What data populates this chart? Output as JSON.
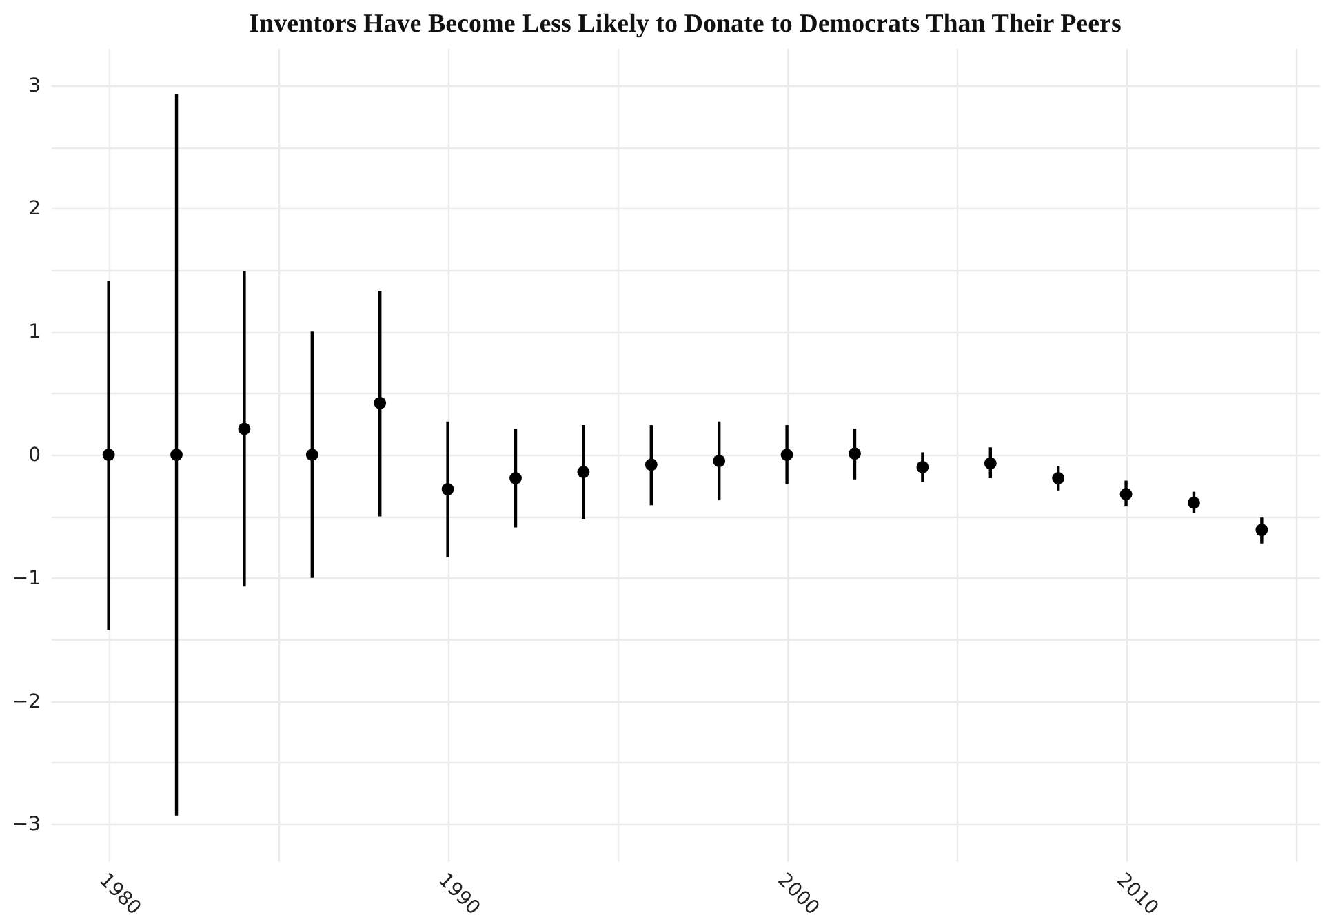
{
  "chart_data": {
    "type": "scatter",
    "title": "Inventors Have Become Less Likely to Donate to Democrats Than Their Peers",
    "x": [
      1980,
      1982,
      1984,
      1986,
      1988,
      1990,
      1992,
      1994,
      1996,
      1998,
      2000,
      2002,
      2004,
      2006,
      2008,
      2010,
      2012,
      2014
    ],
    "series": [
      {
        "color": "#000000",
        "values": [
          0,
          0,
          0.21,
          0,
          0.42,
          -0.28,
          -0.19,
          -0.14,
          -0.08,
          -0.05,
          0,
          0.01,
          -0.1,
          -0.07,
          -0.19,
          -0.32,
          -0.39,
          -0.61
        ],
        "errors": [
          [
            -1.42,
            1.41
          ],
          [
            -2.93,
            2.93
          ],
          [
            -1.07,
            1.49
          ],
          [
            -1.0,
            1.0
          ],
          [
            -0.5,
            1.33
          ],
          [
            -0.83,
            0.27
          ],
          [
            -0.59,
            0.21
          ],
          [
            -0.52,
            0.24
          ],
          [
            -0.41,
            0.24
          ],
          [
            -0.37,
            0.27
          ],
          [
            -0.24,
            0.24
          ],
          [
            -0.2,
            0.21
          ],
          [
            -0.22,
            0.02
          ],
          [
            -0.19,
            0.06
          ],
          [
            -0.29,
            -0.09
          ],
          [
            -0.42,
            -0.21
          ],
          [
            -0.47,
            -0.3
          ],
          [
            -0.72,
            -0.51
          ]
        ]
      }
    ],
    "marker": "circle",
    "xlim": [
      1978.3,
      2015.7
    ],
    "xticks": [
      1980,
      {
        "value": 1985,
        "label": null
      },
      1990,
      {
        "value": 1995,
        "label": null
      },
      2000,
      {
        "value": 2005,
        "label": null
      },
      2010,
      {
        "value": 2015,
        "label": null
      }
    ],
    "ylim": [
      -3.3,
      3.3
    ],
    "yticks": [
      -3,
      {
        "value": -2.5,
        "label": null
      },
      -2,
      {
        "value": -1.5,
        "label": null
      },
      -1,
      {
        "value": -0.5,
        "label": null
      },
      0,
      {
        "value": 0.5,
        "label": null
      },
      1,
      {
        "value": 1.5,
        "label": null
      },
      2,
      {
        "value": 2.5,
        "label": null
      },
      3
    ],
    "grid": true
  }
}
